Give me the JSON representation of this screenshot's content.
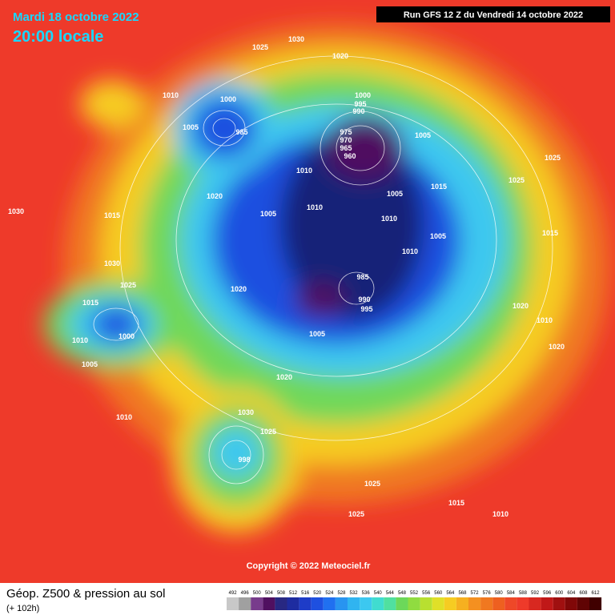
{
  "header": {
    "date": "Mardi 18 octobre 2022",
    "time": "20:00 locale",
    "run": "Run GFS 12 Z du Vendredi 14 octobre 2022"
  },
  "map": {
    "pressure_labels": [
      "1030",
      "1025",
      "1020",
      "1000",
      "1005",
      "1010",
      "1000",
      "995",
      "990",
      "985",
      "975",
      "970",
      "965",
      "960",
      "1005",
      "1010",
      "1015",
      "1005",
      "1010",
      "1015",
      "1025",
      "1005",
      "1010",
      "1030",
      "1025",
      "1020",
      "1015",
      "1000",
      "1005",
      "1010",
      "985",
      "990",
      "995",
      "1005",
      "1020",
      "1030",
      "1025",
      "1010",
      "1020",
      "1010",
      "1005",
      "1030",
      "1020",
      "1025",
      "998",
      "1025",
      "1015",
      "1010",
      "1025",
      "1010",
      "1020",
      "1015"
    ],
    "copyright": "Copyright © 2022 Meteociel.fr"
  },
  "footer": {
    "title": "Géop. Z500 & pression au sol",
    "lead": "(+ 102h)",
    "scale": [
      492,
      496,
      500,
      504,
      508,
      512,
      516,
      520,
      524,
      528,
      532,
      536,
      540,
      544,
      548,
      552,
      556,
      560,
      564,
      568,
      572,
      576,
      580,
      584,
      588,
      592,
      596,
      600,
      604,
      608,
      612
    ]
  }
}
